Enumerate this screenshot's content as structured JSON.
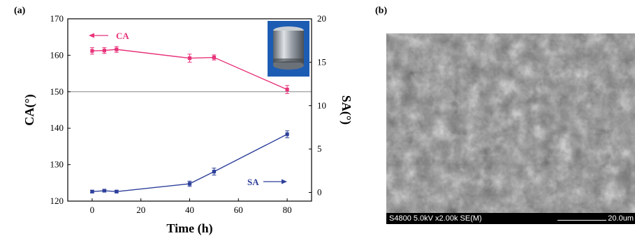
{
  "panels": {
    "a_label": "(a)",
    "b_label": "(b)"
  },
  "chart_data": {
    "type": "line",
    "xlabel": "Time (h)",
    "ylabel_left": "CA(°)",
    "ylabel_right": "SA(°)",
    "xlim": [
      -10,
      90
    ],
    "xticks": [
      0,
      20,
      40,
      60,
      80
    ],
    "ylim_left": [
      120,
      170
    ],
    "yticks_left": [
      120,
      130,
      140,
      150,
      160,
      170
    ],
    "ylim_right": [
      -1,
      20
    ],
    "yticks_right": [
      0,
      5,
      10,
      15,
      20
    ],
    "reference_line_left": 150,
    "series": [
      {
        "name": "CA",
        "axis": "left",
        "color": "#e8337a",
        "x": [
          0,
          5,
          10,
          40,
          50,
          80
        ],
        "y": [
          161.2,
          161.3,
          161.6,
          159.2,
          159.4,
          150.6
        ],
        "err": [
          0.9,
          0.8,
          0.8,
          1.1,
          0.7,
          1.1
        ]
      },
      {
        "name": "SA",
        "axis": "right",
        "color": "#2d3f9a",
        "x": [
          0,
          5,
          10,
          40,
          50,
          80
        ],
        "y": [
          0.1,
          0.2,
          0.1,
          1.0,
          2.4,
          6.7
        ],
        "err": [
          0.15,
          0.15,
          0.15,
          0.3,
          0.4,
          0.4
        ]
      }
    ],
    "annotations": [
      {
        "text": "CA",
        "series": "CA",
        "arrow": "left"
      },
      {
        "text": "SA",
        "series": "SA",
        "arrow": "right"
      }
    ]
  },
  "sem": {
    "info_left": "S4800 5.0kV x2.00k SE(M)",
    "scale_label": "20.0um"
  },
  "colors": {
    "ca": "#e8337a",
    "sa": "#2d3f9a",
    "sem_bg": "#7a7a7a"
  }
}
